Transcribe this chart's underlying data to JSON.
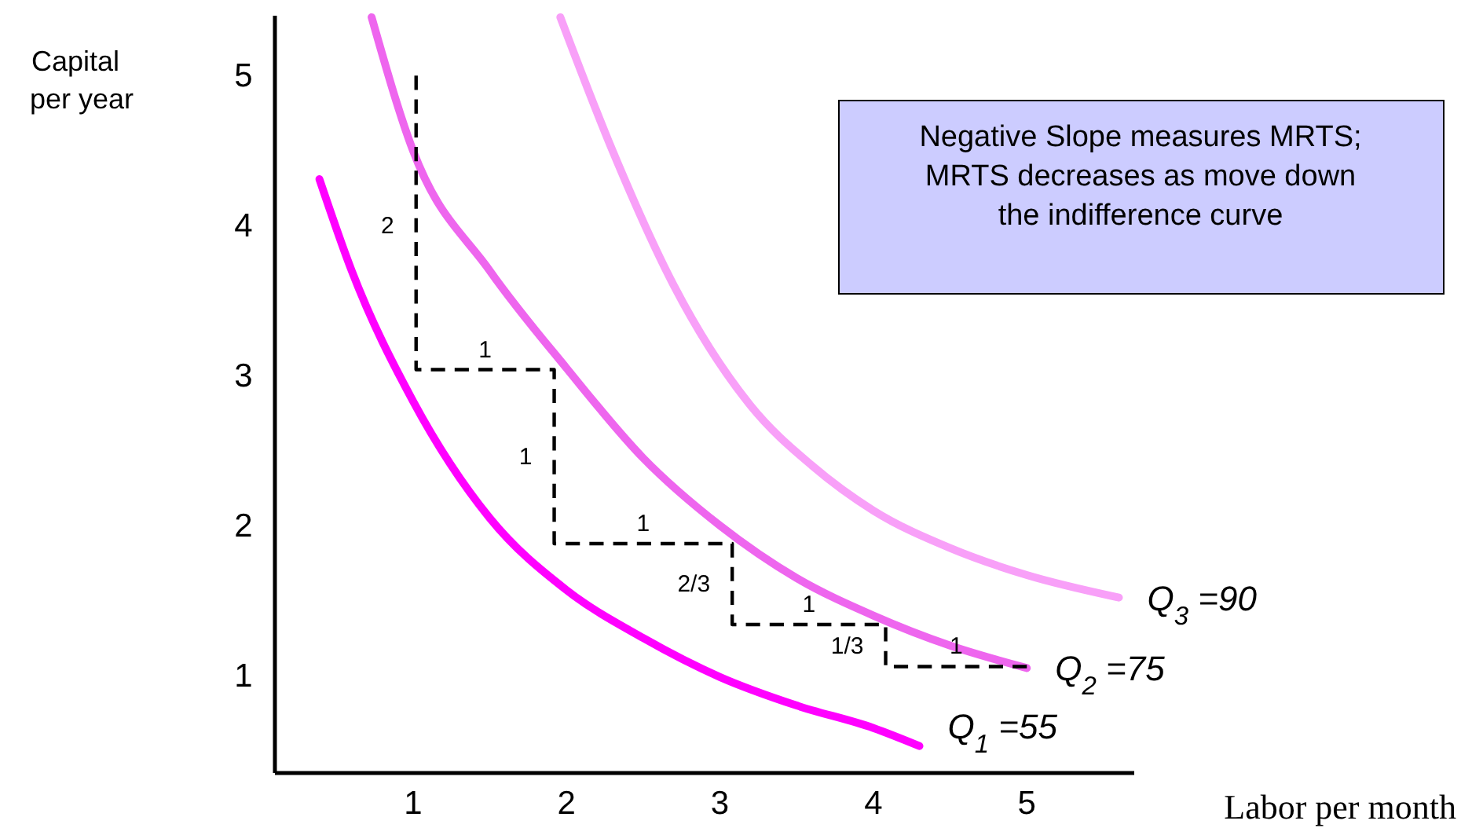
{
  "chart_data": {
    "type": "line",
    "xlabel": "Labor per month",
    "ylabel": "Capital per year",
    "xlim": [
      0.1,
      5.7
    ],
    "ylim": [
      0.35,
      5.4
    ],
    "xticks": [
      1,
      2,
      3,
      4,
      5
    ],
    "yticks": [
      1,
      2,
      3,
      4,
      5
    ],
    "grid": false,
    "legend": false,
    "marker": "none",
    "series": [
      {
        "name": "Q$_{1}$ =55",
        "color": "#ff00ff",
        "x": [
          0.39,
          0.6,
          1,
          1.5,
          2,
          2.5,
          3,
          3.5,
          4,
          4.3
        ],
        "values": [
          4.31,
          3.7,
          2.83,
          2.05,
          1.57,
          1.25,
          0.99,
          0.8,
          0.65,
          0.53
        ]
      },
      {
        "name": "Q$_{2}$ =75",
        "color": "#ee66ee",
        "x": [
          0.73,
          1,
          1.5,
          2,
          2.5,
          3,
          3.5,
          4,
          4.5,
          5
        ],
        "values": [
          5.39,
          4.5,
          3.7,
          3.05,
          2.45,
          2.0,
          1.65,
          1.4,
          1.2,
          1.05
        ]
      },
      {
        "name": "Q$_{3}$ =90",
        "color": "#f8a0f8",
        "x": [
          1.96,
          2.3,
          2.7,
          3.2,
          3.6,
          4,
          4.5,
          5,
          5.6
        ],
        "values": [
          5.39,
          4.5,
          3.6,
          2.8,
          2.4,
          2.1,
          1.85,
          1.67,
          1.52
        ]
      },
      {
        "color": "#000000",
        "line_style": "dashed",
        "x": [
          1.02,
          1.02,
          1.92,
          1.92,
          3.08,
          3.08,
          4.08,
          4.08,
          5.0
        ],
        "values": [
          5,
          3.04,
          3.04,
          1.88,
          1.88,
          1.34,
          1.34,
          1.06,
          1.06
        ]
      }
    ],
    "annotations": [
      "Negative Slope measures MRTS; MRTS decreases as move down the indifference curve",
      {
        "text": "2",
        "x": 1.02,
        "y": 4
      },
      {
        "text": "1",
        "x": 1.47,
        "y": 3.04
      },
      {
        "text": "1",
        "x": 1.92,
        "y": 2.46
      },
      {
        "text": "1",
        "x": 2.5,
        "y": 1.88
      },
      {
        "text": "2/3",
        "x": 3.08,
        "y": 1.61
      },
      {
        "text": "1",
        "x": 3.58,
        "y": 1.34
      },
      {
        "text": "1/3",
        "x": 4.08,
        "y": 1.2
      },
      {
        "text": "1",
        "x": 4.54,
        "y": 1.06
      }
    ]
  }
}
